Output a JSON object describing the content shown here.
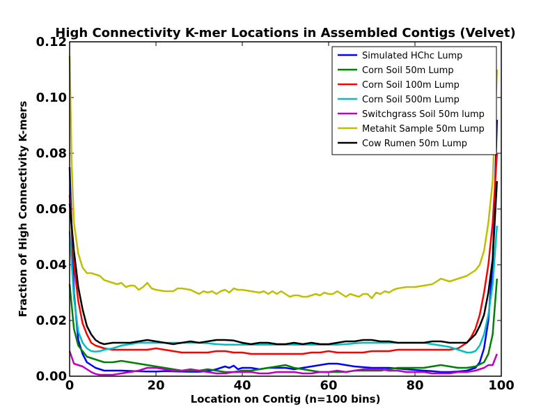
{
  "chart_data": {
    "type": "line",
    "title": "High Connectivity K-mer Locations in Assembled Contigs (Velvet)",
    "xlabel": "Location on Contig (n=100 bins)",
    "ylabel": "Fraction of High Connectivity K-mers",
    "xlim": [
      0,
      100
    ],
    "ylim": [
      0,
      0.12
    ],
    "xticks": [
      0,
      20,
      40,
      60,
      80,
      100
    ],
    "xtick_labels": [
      "0",
      "20",
      "40",
      "60",
      "80",
      "100"
    ],
    "yticks": [
      0,
      0.02,
      0.04,
      0.06,
      0.08,
      0.1,
      0.12
    ],
    "ytick_labels": [
      "0.00",
      "0.02",
      "0.04",
      "0.06",
      "0.08",
      "0.10",
      "0.12"
    ],
    "grid": false,
    "legend_position": "top-right",
    "series": [
      {
        "name": "Simulated HChc Lump",
        "color": "#0000ff",
        "x": [
          0,
          1,
          2,
          3,
          4,
          5,
          6,
          7,
          8,
          10,
          12,
          15,
          18,
          20,
          22,
          25,
          28,
          30,
          32,
          34,
          36,
          37,
          38,
          39,
          40,
          42,
          44,
          46,
          48,
          50,
          52,
          54,
          56,
          58,
          60,
          62,
          64,
          66,
          70,
          74,
          78,
          82,
          84,
          86,
          88,
          90,
          92,
          94,
          95,
          96,
          97,
          98,
          99
        ],
        "y": [
          0.075,
          0.03,
          0.013,
          0.008,
          0.005,
          0.004,
          0.003,
          0.0025,
          0.002,
          0.002,
          0.002,
          0.0018,
          0.0017,
          0.0017,
          0.0018,
          0.0017,
          0.0016,
          0.0016,
          0.0018,
          0.0025,
          0.0035,
          0.003,
          0.0038,
          0.0025,
          0.003,
          0.003,
          0.0025,
          0.003,
          0.003,
          0.003,
          0.0025,
          0.003,
          0.0035,
          0.004,
          0.0045,
          0.0045,
          0.004,
          0.0035,
          0.003,
          0.003,
          0.0025,
          0.002,
          0.0018,
          0.0015,
          0.0015,
          0.0017,
          0.002,
          0.003,
          0.005,
          0.01,
          0.02,
          0.04,
          0.092
        ]
      },
      {
        "name": "Corn Soil 50m Lump",
        "color": "#008000",
        "x": [
          0,
          1,
          2,
          3,
          4,
          5,
          6,
          7,
          8,
          10,
          12,
          14,
          16,
          18,
          20,
          22,
          24,
          26,
          28,
          30,
          32,
          34,
          36,
          38,
          40,
          42,
          44,
          46,
          48,
          50,
          52,
          54,
          56,
          58,
          60,
          62,
          64,
          66,
          68,
          70,
          72,
          74,
          76,
          78,
          80,
          82,
          84,
          86,
          88,
          90,
          92,
          94,
          96,
          97,
          98,
          99
        ],
        "y": [
          0.033,
          0.017,
          0.011,
          0.009,
          0.007,
          0.0065,
          0.006,
          0.0055,
          0.005,
          0.005,
          0.0055,
          0.005,
          0.0045,
          0.004,
          0.0035,
          0.003,
          0.0025,
          0.002,
          0.002,
          0.002,
          0.0025,
          0.002,
          0.0015,
          0.0015,
          0.002,
          0.002,
          0.0025,
          0.003,
          0.0035,
          0.004,
          0.003,
          0.0025,
          0.002,
          0.0015,
          0.0015,
          0.0015,
          0.0015,
          0.002,
          0.002,
          0.002,
          0.002,
          0.0025,
          0.003,
          0.003,
          0.003,
          0.003,
          0.0035,
          0.004,
          0.0035,
          0.003,
          0.003,
          0.0035,
          0.005,
          0.008,
          0.015,
          0.035
        ]
      },
      {
        "name": "Corn Soil 100m Lump",
        "color": "#ff0000",
        "x": [
          0,
          1,
          2,
          3,
          4,
          5,
          6,
          7,
          8,
          10,
          12,
          14,
          16,
          18,
          20,
          22,
          24,
          26,
          28,
          30,
          32,
          34,
          36,
          38,
          40,
          42,
          44,
          46,
          48,
          50,
          52,
          54,
          56,
          58,
          60,
          62,
          64,
          66,
          68,
          70,
          72,
          74,
          76,
          78,
          80,
          82,
          84,
          86,
          88,
          90,
          91,
          92,
          93,
          94,
          95,
          96,
          97,
          98,
          99
        ],
        "y": [
          0.065,
          0.04,
          0.027,
          0.019,
          0.015,
          0.012,
          0.011,
          0.0105,
          0.01,
          0.0095,
          0.0095,
          0.0095,
          0.0095,
          0.0095,
          0.01,
          0.0095,
          0.009,
          0.0085,
          0.0085,
          0.0085,
          0.0085,
          0.009,
          0.009,
          0.0085,
          0.0085,
          0.008,
          0.008,
          0.008,
          0.008,
          0.008,
          0.008,
          0.008,
          0.0085,
          0.0085,
          0.009,
          0.0085,
          0.0085,
          0.0085,
          0.0085,
          0.009,
          0.009,
          0.009,
          0.0095,
          0.0095,
          0.0095,
          0.0095,
          0.0095,
          0.0095,
          0.0095,
          0.01,
          0.011,
          0.012,
          0.014,
          0.017,
          0.022,
          0.03,
          0.04,
          0.055,
          0.08
        ]
      },
      {
        "name": "Corn Soil 500m Lump",
        "color": "#00bfbf",
        "x": [
          0,
          1,
          2,
          3,
          4,
          5,
          6,
          7,
          8,
          10,
          12,
          14,
          16,
          18,
          20,
          22,
          24,
          26,
          28,
          30,
          32,
          34,
          36,
          38,
          40,
          42,
          44,
          46,
          48,
          50,
          52,
          54,
          56,
          58,
          60,
          62,
          64,
          66,
          68,
          70,
          72,
          74,
          76,
          78,
          80,
          82,
          84,
          86,
          88,
          90,
          92,
          93,
          94,
          95,
          96,
          97,
          98,
          99
        ],
        "y": [
          0.052,
          0.028,
          0.016,
          0.012,
          0.01,
          0.009,
          0.0088,
          0.009,
          0.0095,
          0.01,
          0.011,
          0.0115,
          0.012,
          0.012,
          0.012,
          0.012,
          0.012,
          0.012,
          0.012,
          0.012,
          0.0118,
          0.0115,
          0.0113,
          0.0113,
          0.0113,
          0.0113,
          0.0113,
          0.0113,
          0.0113,
          0.0113,
          0.0113,
          0.0113,
          0.0113,
          0.0113,
          0.0113,
          0.0113,
          0.0115,
          0.0118,
          0.012,
          0.012,
          0.012,
          0.012,
          0.012,
          0.012,
          0.012,
          0.012,
          0.0115,
          0.011,
          0.0105,
          0.0095,
          0.0085,
          0.0085,
          0.009,
          0.011,
          0.015,
          0.022,
          0.033,
          0.054
        ]
      },
      {
        "name": "Switchgrass Soil 50m lump",
        "color": "#bf00bf",
        "x": [
          0,
          1,
          2,
          3,
          4,
          5,
          6,
          7,
          8,
          10,
          12,
          14,
          16,
          18,
          20,
          22,
          24,
          26,
          28,
          30,
          32,
          34,
          36,
          38,
          40,
          42,
          44,
          46,
          48,
          50,
          52,
          54,
          56,
          58,
          60,
          62,
          64,
          66,
          68,
          70,
          72,
          74,
          76,
          78,
          80,
          82,
          84,
          86,
          88,
          90,
          92,
          94,
          96,
          97,
          98,
          99
        ],
        "y": [
          0.009,
          0.0045,
          0.004,
          0.0035,
          0.0025,
          0.0015,
          0.0008,
          0.0005,
          0.0005,
          0.0005,
          0.001,
          0.0015,
          0.002,
          0.003,
          0.003,
          0.0025,
          0.002,
          0.002,
          0.0025,
          0.002,
          0.0015,
          0.001,
          0.001,
          0.0015,
          0.0015,
          0.0015,
          0.001,
          0.001,
          0.0015,
          0.0015,
          0.0015,
          0.001,
          0.001,
          0.0015,
          0.0015,
          0.002,
          0.0015,
          0.002,
          0.0025,
          0.0025,
          0.0025,
          0.002,
          0.002,
          0.0015,
          0.0015,
          0.0015,
          0.001,
          0.001,
          0.001,
          0.0015,
          0.0015,
          0.002,
          0.003,
          0.004,
          0.004,
          0.008
        ]
      },
      {
        "name": "Metahit Sample 50m Lump",
        "color": "#bfbf00",
        "x": [
          0,
          0.5,
          1,
          2,
          3,
          4,
          5,
          6,
          7,
          8,
          9,
          10,
          11,
          12,
          13,
          14,
          15,
          16,
          17,
          18,
          19,
          20,
          22,
          24,
          25,
          26,
          28,
          30,
          31,
          32,
          33,
          34,
          35,
          36,
          37,
          38,
          39,
          40,
          42,
          44,
          45,
          46,
          47,
          48,
          49,
          50,
          51,
          52,
          53,
          54,
          55,
          56,
          57,
          58,
          59,
          60,
          61,
          62,
          63,
          64,
          65,
          66,
          67,
          68,
          69,
          70,
          71,
          72,
          73,
          74,
          75,
          76,
          78,
          80,
          82,
          84,
          86,
          88,
          90,
          92,
          94,
          95,
          96,
          97,
          98,
          99
        ],
        "y": [
          0.115,
          0.075,
          0.055,
          0.044,
          0.039,
          0.037,
          0.037,
          0.0365,
          0.036,
          0.0345,
          0.034,
          0.0335,
          0.033,
          0.0335,
          0.032,
          0.0325,
          0.0325,
          0.031,
          0.032,
          0.0335,
          0.0315,
          0.031,
          0.0305,
          0.0305,
          0.0315,
          0.0315,
          0.031,
          0.0295,
          0.0305,
          0.03,
          0.0305,
          0.0295,
          0.0305,
          0.031,
          0.03,
          0.0315,
          0.031,
          0.031,
          0.0305,
          0.03,
          0.0305,
          0.0295,
          0.0305,
          0.0295,
          0.0305,
          0.0295,
          0.0285,
          0.029,
          0.029,
          0.0285,
          0.0285,
          0.029,
          0.0295,
          0.029,
          0.03,
          0.0295,
          0.0295,
          0.0305,
          0.0295,
          0.0285,
          0.0295,
          0.029,
          0.0285,
          0.0295,
          0.0295,
          0.028,
          0.03,
          0.0295,
          0.0305,
          0.03,
          0.031,
          0.0315,
          0.032,
          0.032,
          0.0325,
          0.033,
          0.035,
          0.034,
          0.035,
          0.036,
          0.038,
          0.04,
          0.045,
          0.055,
          0.07,
          0.11
        ]
      },
      {
        "name": "Cow Rumen 50m Lump",
        "color": "#000000",
        "x": [
          0,
          1,
          2,
          3,
          4,
          5,
          6,
          7,
          8,
          10,
          12,
          14,
          16,
          18,
          20,
          22,
          24,
          26,
          28,
          30,
          32,
          34,
          36,
          38,
          40,
          42,
          44,
          46,
          48,
          50,
          52,
          54,
          56,
          58,
          60,
          62,
          64,
          66,
          68,
          70,
          72,
          74,
          76,
          78,
          80,
          82,
          84,
          86,
          88,
          90,
          91,
          92,
          93,
          94,
          95,
          96,
          97,
          98,
          99
        ],
        "y": [
          0.062,
          0.045,
          0.032,
          0.024,
          0.018,
          0.015,
          0.013,
          0.012,
          0.0115,
          0.012,
          0.012,
          0.012,
          0.0125,
          0.013,
          0.0125,
          0.012,
          0.0115,
          0.012,
          0.0125,
          0.012,
          0.0125,
          0.013,
          0.013,
          0.0128,
          0.012,
          0.0115,
          0.012,
          0.012,
          0.0115,
          0.0115,
          0.012,
          0.0115,
          0.012,
          0.0115,
          0.0115,
          0.012,
          0.0125,
          0.0125,
          0.013,
          0.013,
          0.0125,
          0.0125,
          0.012,
          0.012,
          0.012,
          0.012,
          0.0125,
          0.0125,
          0.012,
          0.012,
          0.012,
          0.012,
          0.0135,
          0.015,
          0.018,
          0.022,
          0.03,
          0.042,
          0.07
        ]
      }
    ]
  }
}
